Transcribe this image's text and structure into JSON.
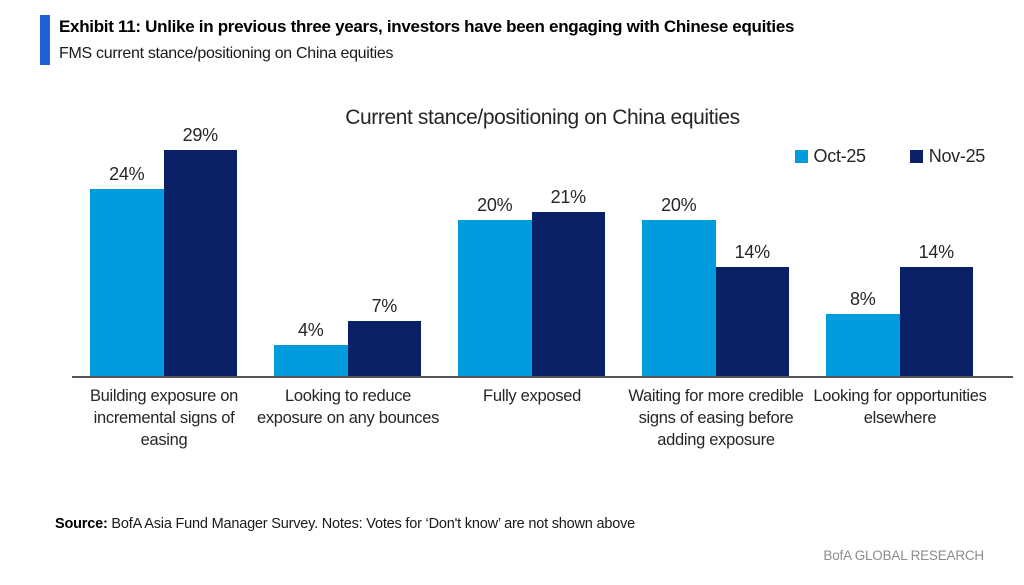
{
  "exhibit": {
    "title": "Exhibit 11: Unlike in previous three years, investors have been engaging with Chinese equities",
    "subtitle": "FMS current stance/positioning on China equities"
  },
  "chart_data": {
    "type": "bar",
    "title": "Current stance/positioning on China equities",
    "categories": [
      "Building exposure on incremental signs of easing",
      "Looking to reduce exposure on any bounces",
      "Fully exposed",
      "Waiting for more credible signs of easing before adding exposure",
      "Looking for opportunities elsewhere"
    ],
    "series": [
      {
        "name": "Oct-25",
        "color": "#009CDE",
        "values": [
          24,
          4,
          20,
          20,
          8
        ]
      },
      {
        "name": "Nov-25",
        "color": "#0A2167",
        "values": [
          29,
          7,
          21,
          14,
          14
        ]
      }
    ],
    "value_suffix": "%",
    "ylim": [
      0,
      32
    ],
    "grid": false,
    "legend_position": "top-right",
    "data_labels": true
  },
  "footer": {
    "source_label": "Source:",
    "source_text": " BofA Asia Fund Manager Survey. Notes: Votes for ‘Don't know’ are not shown above",
    "brand": "BofA GLOBAL RESEARCH"
  },
  "colors": {
    "accent_bar": "#1E63D6",
    "axis": "#555555",
    "brand_text": "#8C8C8C"
  }
}
